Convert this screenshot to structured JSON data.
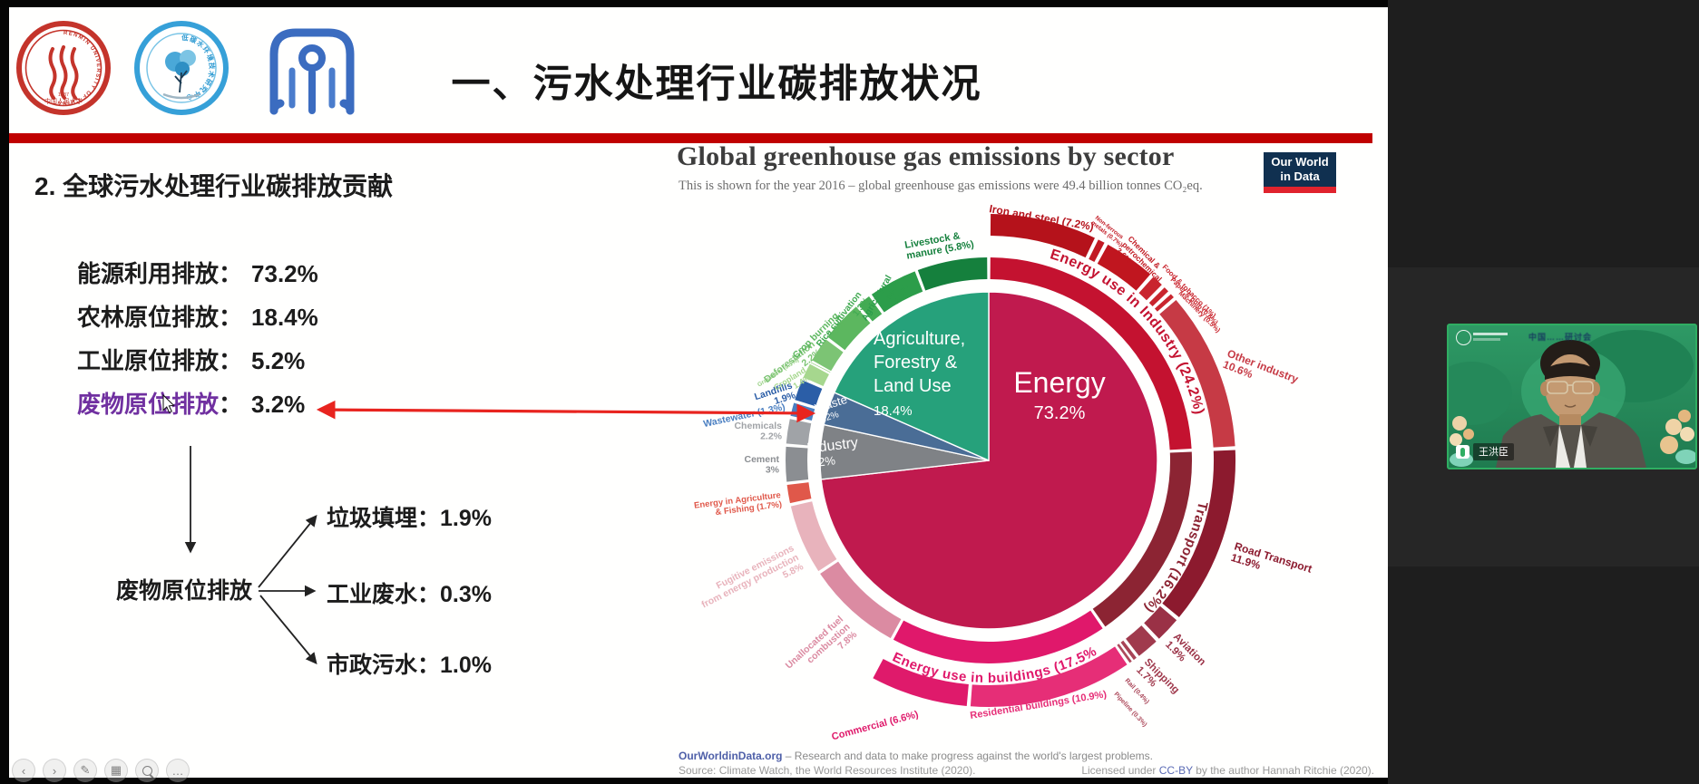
{
  "slide": {
    "title": "一、污水处理行业碳排放状况",
    "divider_color": "#c00000",
    "logos": [
      {
        "name": "renmin-university-seal"
      },
      {
        "name": "low-carbon-water-research-center-logo"
      },
      {
        "name": "institute-monogram-logo"
      }
    ],
    "section_heading": "2. 全球污水处理行业碳排放贡献",
    "separator": "：",
    "stats": [
      {
        "label": "能源利用排放",
        "value": "73.2%",
        "color": "#1c1c1c"
      },
      {
        "label": "农林原位排放",
        "value": "18.4%",
        "color": "#1c1c1c"
      },
      {
        "label": "工业原位排放",
        "value": "5.2%",
        "color": "#1c1c1c"
      },
      {
        "label": "废物原位排放",
        "value": "3.2%",
        "color": "#7030a0"
      }
    ],
    "arrow_color": "#e8241f",
    "flow": {
      "root": "废物原位排放",
      "branches": [
        {
          "label": "垃圾填埋",
          "value": "1.9%"
        },
        {
          "label": "工业废水",
          "value": "0.3%"
        },
        {
          "label": "市政污水",
          "value": "1.0%"
        }
      ]
    }
  },
  "chart": {
    "title": "Global greenhouse gas emissions by sector",
    "subtitle": "This is shown for the year 2016 – global greenhouse gas emissions were 49.4 billion tonnes CO₂eq.",
    "logo": {
      "line1": "Our World",
      "line2": "in Data",
      "bg": "#103050",
      "accent": "#e0232d"
    },
    "footer": {
      "brand": "OurWorldinData.org",
      "brand_suffix": " – Research and data to make progress against the world's largest problems.",
      "source": "Source: Climate Watch, the World Resources Institute (2020).",
      "license_prefix": "Licensed under ",
      "license_link": "CC-BY",
      "license_suffix": " by the author Hannah Ritchie (2020)."
    },
    "chart_data": {
      "type": "pie",
      "subtype": "sunburst",
      "title": "Global greenhouse gas emissions by sector",
      "year": "2016",
      "total": "49.4 billion tonnes CO₂eq",
      "units": "%",
      "rings": {
        "inner": [
          {
            "id": "energy",
            "name": "Energy",
            "display": "73.2%",
            "value": 73.2,
            "color": "#c01a4e"
          },
          {
            "id": "industry",
            "name": "Industry",
            "display": "5.2%",
            "value": 5.2,
            "color": "#7f8286"
          },
          {
            "id": "waste",
            "name": "Waste",
            "display": "3.2%",
            "value": 3.2,
            "color": "#4a6d96"
          },
          {
            "id": "agriculture",
            "name": "Agriculture,\nForestry &\nLand Use",
            "display": "18.4%",
            "value": 18.4,
            "color": "#26a17b"
          }
        ],
        "middle": [
          {
            "id": "energy-industry",
            "label": "Energy use in Industry (24.2%)",
            "value": 24.2,
            "color": "#c41230",
            "curved": true
          },
          {
            "id": "transport",
            "label": "Transport (16.2%)",
            "value": 16.2,
            "color": "#8c2433",
            "curved": true
          },
          {
            "id": "buildings",
            "label": "Energy use in buildings (17.5%)",
            "value": 17.5,
            "color": "#e0186b",
            "curved": true
          },
          {
            "id": "unallocated",
            "label": "Unallocated fuel\ncombustion\n7.8%",
            "value": 7.8,
            "color": "#db8ba2"
          },
          {
            "id": "fugitive",
            "label": "Fugitive emissions\nfrom energy production\n5.8%",
            "value": 5.8,
            "color": "#e8b3bc"
          },
          {
            "id": "ag-fishing",
            "label": "Energy in Agriculture\n& Fishing (1.7%)",
            "value": 1.7,
            "color": "#e0584a"
          },
          {
            "id": "cement",
            "label": "Cement\n3%",
            "value": 3,
            "color": "#8b8e92"
          },
          {
            "id": "chemicals",
            "label": "Chemicals\n2.2%",
            "value": 2.2,
            "color": "#a0a3a7"
          },
          {
            "id": "wastewater",
            "label": "Wastewater (1.3%)",
            "value": 1.3,
            "color": "#4a7fc1"
          },
          {
            "id": "landfills",
            "label": "Landfills\n1.9%",
            "value": 1.9,
            "color": "#2b5ea7"
          },
          {
            "id": "cropland",
            "label": "Cropland\n1.4%",
            "value": 1.4,
            "color": "#a6d78e"
          },
          {
            "id": "grassland",
            "label": "Grassland (0.1%)",
            "value": 0.1,
            "color": "#95cf80"
          },
          {
            "id": "deforestation",
            "label": "Deforestation\n2.2%",
            "value": 2.2,
            "color": "#7cc474"
          },
          {
            "id": "crop-burning",
            "label": "Crop burning\n3.5%",
            "value": 3.5,
            "color": "#5cb75f"
          },
          {
            "id": "rice",
            "label": "Rice cultivation\n1.3%",
            "value": 1.3,
            "color": "#43ab53"
          },
          {
            "id": "ag-soils",
            "label": "Agricultural\nsoils\n4.1%",
            "value": 4.1,
            "color": "#2c9d4a"
          },
          {
            "id": "livestock",
            "label": "Livestock &\nmanure (5.8%)",
            "value": 5.8,
            "color": "#15803d"
          }
        ],
        "outer": [
          {
            "id": "iron-steel",
            "label": "Iron and steel (7.2%)",
            "value": 7.2,
            "color": "#b5121b"
          },
          {
            "id": "non-ferrous",
            "label": "Non-ferrous\nmetals (0.7%)",
            "value": 0.7,
            "color": "#c21a24"
          },
          {
            "id": "chem-petro",
            "label": "Chemical &\npetrochemical\n3.6%",
            "value": 3.6,
            "color": "#c0161f"
          },
          {
            "id": "food-tobacco",
            "label": "Food & tobacco (1%)",
            "value": 1,
            "color": "#c9252e"
          },
          {
            "id": "paper-pulp",
            "label": "Paper & pulp (0.6%)",
            "value": 0.6,
            "color": "#c9252e"
          },
          {
            "id": "machinery",
            "label": "Machinery (0.5%)",
            "value": 0.5,
            "color": "#c9252e"
          },
          {
            "id": "other-industry",
            "label": "Other industry\n10.6%",
            "value": 10.6,
            "color": "#c63a45"
          },
          {
            "id": "road",
            "label": "Road Transport\n11.9%",
            "value": 11.9,
            "color": "#8c1a2e"
          },
          {
            "id": "aviation",
            "label": "Aviation\n1.9%",
            "value": 1.9,
            "color": "#9a3146"
          },
          {
            "id": "shipping",
            "label": "Shipping\n1.7%",
            "value": 1.7,
            "color": "#a03a4d"
          },
          {
            "id": "rail",
            "label": "Rail (0.4%)",
            "value": 0.4,
            "color": "#a84356"
          },
          {
            "id": "pipeline",
            "label": "Pipeline (0.3%)",
            "value": 0.3,
            "color": "#ad4a5c"
          },
          {
            "id": "residential",
            "label": "Residential buildings (10.9%)",
            "value": 10.9,
            "color": "#e62e77"
          },
          {
            "id": "commercial",
            "label": "Commercial (6.6%)",
            "value": 6.6,
            "color": "#df1a6b"
          }
        ]
      }
    }
  },
  "webcam": {
    "name": "王洪臣",
    "overlay_title": "中国……研讨会",
    "mic_icon": "microphone-on"
  },
  "toolbar": {
    "buttons": [
      {
        "icon": "previous-slide",
        "glyph": "‹"
      },
      {
        "icon": "next-slide",
        "glyph": "›"
      },
      {
        "icon": "pen-annotate",
        "glyph": "✎"
      },
      {
        "icon": "slide-grid",
        "glyph": "▦"
      },
      {
        "icon": "magnifier-zoom",
        "glyph": ""
      },
      {
        "icon": "more-options",
        "glyph": "…"
      }
    ]
  }
}
